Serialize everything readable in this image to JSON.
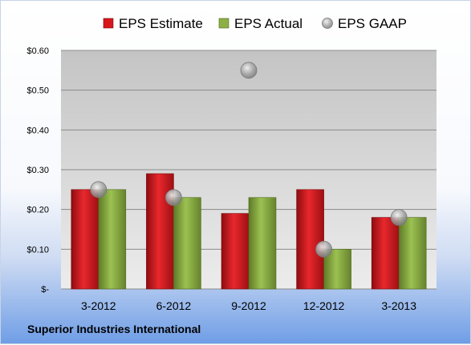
{
  "chart_data": {
    "type": "bar",
    "categories": [
      "3-2012",
      "6-2012",
      "9-2012",
      "12-2012",
      "3-2013"
    ],
    "series": [
      {
        "name": "EPS Estimate",
        "kind": "bar",
        "color": "#d7161c",
        "values": [
          0.25,
          0.29,
          0.19,
          0.25,
          0.18
        ]
      },
      {
        "name": "EPS Actual",
        "kind": "bar",
        "color": "#8db045",
        "values": [
          0.25,
          0.23,
          0.23,
          0.1,
          0.18
        ]
      },
      {
        "name": "EPS GAAP",
        "kind": "scatter",
        "color": "#a9a9a9",
        "values": [
          0.25,
          0.23,
          0.55,
          0.1,
          0.18
        ]
      }
    ],
    "yticks": [
      "$-",
      "$0.10",
      "$0.20",
      "$0.30",
      "$0.40",
      "$0.50",
      "$0.60"
    ],
    "ylim": [
      0,
      0.6
    ],
    "grid": true,
    "legend_position": "top",
    "company": "Superior Industries International"
  }
}
